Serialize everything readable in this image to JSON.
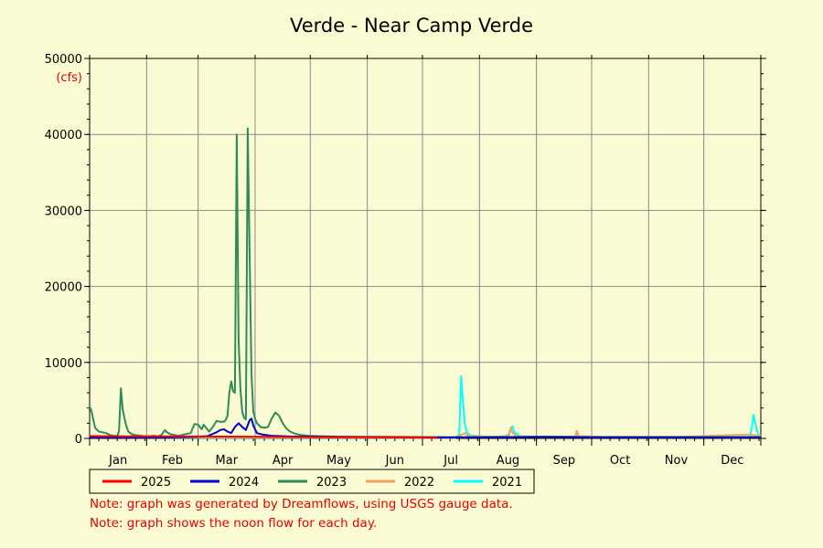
{
  "chart_data": {
    "type": "line",
    "title": "Verde - Near Camp Verde",
    "ylabel": "(cfs)",
    "xlabel": "",
    "ylim": [
      0,
      50000
    ],
    "yticks": [
      0,
      10000,
      20000,
      30000,
      40000,
      50000
    ],
    "xlim_day_of_year": [
      1,
      366
    ],
    "month_labels": [
      "Jan",
      "Feb",
      "Mar",
      "Apr",
      "May",
      "Jun",
      "Jul",
      "Aug",
      "Sep",
      "Oct",
      "Nov",
      "Dec"
    ],
    "grid": true,
    "legend_position": "bottom",
    "series": [
      {
        "name": "2025",
        "color": "#ff0000",
        "points": [
          [
            1,
            300
          ],
          [
            20,
            280
          ],
          [
            40,
            260
          ],
          [
            55,
            250
          ],
          [
            70,
            240
          ],
          [
            85,
            230
          ],
          [
            100,
            200
          ],
          [
            120,
            170
          ],
          [
            140,
            160
          ],
          [
            160,
            150
          ],
          [
            175,
            140
          ],
          [
            185,
            100
          ],
          [
            190,
            90
          ]
        ]
      },
      {
        "name": "2024",
        "color": "#0000cc",
        "points": [
          [
            1,
            120
          ],
          [
            30,
            110
          ],
          [
            50,
            150
          ],
          [
            60,
            200
          ],
          [
            65,
            300
          ],
          [
            70,
            800
          ],
          [
            72,
            1100
          ],
          [
            74,
            1200
          ],
          [
            76,
            900
          ],
          [
            78,
            700
          ],
          [
            80,
            1500
          ],
          [
            82,
            2000
          ],
          [
            84,
            1500
          ],
          [
            86,
            1100
          ],
          [
            88,
            2400
          ],
          [
            89,
            2600
          ],
          [
            90,
            1700
          ],
          [
            92,
            700
          ],
          [
            95,
            500
          ],
          [
            100,
            350
          ],
          [
            110,
            250
          ],
          [
            130,
            200
          ],
          [
            150,
            180
          ],
          [
            170,
            150
          ],
          [
            190,
            120
          ],
          [
            220,
            160
          ],
          [
            250,
            200
          ],
          [
            280,
            150
          ],
          [
            310,
            150
          ],
          [
            340,
            150
          ],
          [
            366,
            150
          ]
        ]
      },
      {
        "name": "2023",
        "color": "#2e8b57",
        "points": [
          [
            1,
            4200
          ],
          [
            2,
            3600
          ],
          [
            4,
            1400
          ],
          [
            6,
            900
          ],
          [
            8,
            800
          ],
          [
            10,
            700
          ],
          [
            12,
            450
          ],
          [
            14,
            350
          ],
          [
            16,
            300
          ],
          [
            17,
            1000
          ],
          [
            18,
            6600
          ],
          [
            19,
            3800
          ],
          [
            20,
            2600
          ],
          [
            21,
            1600
          ],
          [
            22,
            900
          ],
          [
            24,
            550
          ],
          [
            26,
            420
          ],
          [
            28,
            380
          ],
          [
            30,
            300
          ],
          [
            32,
            280
          ],
          [
            34,
            300
          ],
          [
            36,
            350
          ],
          [
            38,
            250
          ],
          [
            40,
            450
          ],
          [
            42,
            1100
          ],
          [
            43,
            800
          ],
          [
            45,
            550
          ],
          [
            48,
            400
          ],
          [
            50,
            350
          ],
          [
            52,
            500
          ],
          [
            56,
            700
          ],
          [
            58,
            1900
          ],
          [
            60,
            1800
          ],
          [
            62,
            1200
          ],
          [
            63,
            1800
          ],
          [
            64,
            1500
          ],
          [
            66,
            900
          ],
          [
            68,
            1500
          ],
          [
            70,
            2300
          ],
          [
            72,
            2200
          ],
          [
            74,
            2200
          ],
          [
            75,
            2400
          ],
          [
            76,
            3000
          ],
          [
            77,
            6000
          ],
          [
            78,
            7500
          ],
          [
            79,
            6200
          ],
          [
            80,
            6000
          ],
          [
            81,
            40000
          ],
          [
            82,
            13000
          ],
          [
            83,
            6500
          ],
          [
            84,
            3500
          ],
          [
            85,
            2700
          ],
          [
            86,
            2500
          ],
          [
            87,
            40800
          ],
          [
            88,
            24000
          ],
          [
            89,
            8500
          ],
          [
            90,
            3500
          ],
          [
            91,
            2600
          ],
          [
            92,
            2000
          ],
          [
            94,
            1500
          ],
          [
            96,
            1400
          ],
          [
            98,
            1500
          ],
          [
            100,
            2600
          ],
          [
            102,
            3400
          ],
          [
            104,
            3000
          ],
          [
            106,
            2000
          ],
          [
            108,
            1300
          ],
          [
            110,
            900
          ],
          [
            113,
            600
          ],
          [
            116,
            450
          ],
          [
            120,
            350
          ],
          [
            125,
            300
          ],
          [
            130,
            260
          ],
          [
            140,
            220
          ],
          [
            160,
            200
          ],
          [
            180,
            180
          ],
          [
            200,
            170
          ],
          [
            220,
            170
          ],
          [
            240,
            180
          ],
          [
            260,
            170
          ],
          [
            280,
            160
          ],
          [
            300,
            160
          ],
          [
            320,
            160
          ],
          [
            340,
            160
          ],
          [
            366,
            160
          ]
        ]
      },
      {
        "name": "2022",
        "color": "#f4a460",
        "points": [
          [
            1,
            150
          ],
          [
            40,
            140
          ],
          [
            80,
            150
          ],
          [
            120,
            130
          ],
          [
            160,
            110
          ],
          [
            200,
            100
          ],
          [
            205,
            700
          ],
          [
            207,
            300
          ],
          [
            220,
            200
          ],
          [
            229,
            300
          ],
          [
            230,
            1400
          ],
          [
            231,
            700
          ],
          [
            233,
            300
          ],
          [
            240,
            200
          ],
          [
            265,
            250
          ],
          [
            266,
            1000
          ],
          [
            267,
            300
          ],
          [
            280,
            200
          ],
          [
            320,
            200
          ],
          [
            360,
            500
          ],
          [
            366,
            300
          ]
        ]
      },
      {
        "name": "2021",
        "color": "#00ffff",
        "points": [
          [
            1,
            120
          ],
          [
            60,
            100
          ],
          [
            120,
            80
          ],
          [
            180,
            80
          ],
          [
            200,
            100
          ],
          [
            202,
            500
          ],
          [
            203,
            8200
          ],
          [
            204,
            5000
          ],
          [
            205,
            2000
          ],
          [
            206,
            900
          ],
          [
            208,
            400
          ],
          [
            215,
            250
          ],
          [
            225,
            200
          ],
          [
            229,
            500
          ],
          [
            230,
            1400
          ],
          [
            231,
            1600
          ],
          [
            232,
            800
          ],
          [
            235,
            300
          ],
          [
            245,
            200
          ],
          [
            265,
            180
          ],
          [
            266,
            400
          ],
          [
            267,
            200
          ],
          [
            300,
            150
          ],
          [
            355,
            180
          ],
          [
            360,
            200
          ],
          [
            361,
            1200
          ],
          [
            362,
            3100
          ],
          [
            363,
            2000
          ],
          [
            364,
            900
          ],
          [
            365,
            400
          ],
          [
            366,
            300
          ]
        ]
      }
    ]
  },
  "notes": [
    "Note: graph was generated by Dreamflows, using USGS gauge data.",
    "Note: graph shows the noon flow for each day."
  ]
}
